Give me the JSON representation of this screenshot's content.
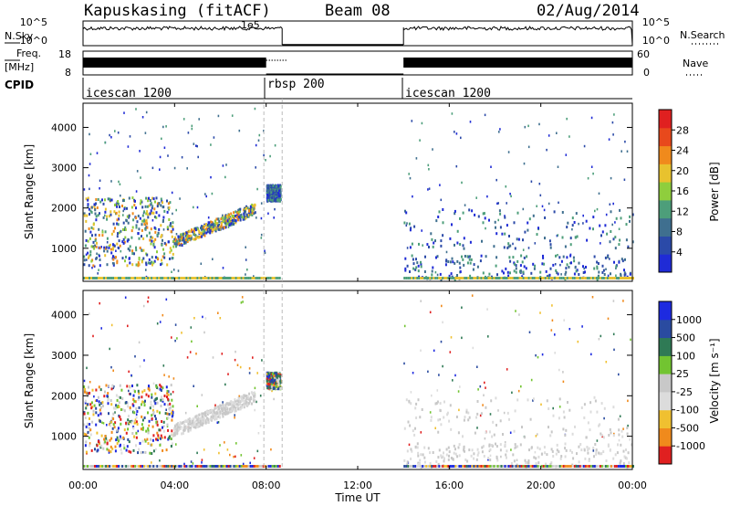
{
  "header": {
    "radar": "Kapuskasing (fitACF)",
    "beam": "Beam 08",
    "date": "02/Aug/2014"
  },
  "left_labels": {
    "nsky": "N.Sky",
    "freq_top": "Freq.",
    "freq_unit": "[MHz]",
    "cpid": "CPID"
  },
  "right_labels": {
    "nsearch": "N.Search",
    "nave": "Nave"
  },
  "colors": {
    "frame": "#000000",
    "guide": "#bbbbbb"
  },
  "chart_data": [
    {
      "type": "line",
      "panel": "noise",
      "left_axis": {
        "label": "N.Sky",
        "ticks": [
          "10^5",
          "10^0"
        ]
      },
      "right_axis": {
        "label": "N.Search",
        "ticks": [
          "10^5",
          "10^0"
        ]
      },
      "segments": [
        {
          "x": [
            "00:00",
            "08:42"
          ],
          "level": "high"
        },
        {
          "x": [
            "14:00",
            "24:00"
          ],
          "level": "high"
        }
      ],
      "annotation": "1e5"
    },
    {
      "type": "line",
      "panel": "frequency",
      "left_axis": {
        "label": "Freq. [MHz]",
        "ticks": [
          18,
          8
        ]
      },
      "right_axis": {
        "label": "Nave",
        "ticks": [
          60,
          0
        ]
      },
      "segments": [
        {
          "x": [
            "00:00",
            "08:00"
          ],
          "level": "high"
        },
        {
          "x": [
            "14:00",
            "24:00"
          ],
          "level": "high"
        }
      ]
    },
    {
      "type": "table",
      "panel": "cpid",
      "label": "CPID",
      "entries": [
        {
          "name": "icescan 1200",
          "start": "00:00"
        },
        {
          "name": "rbsp 200",
          "start": "08:00"
        },
        {
          "name": "icescan 1200",
          "start": "14:00"
        }
      ]
    },
    {
      "type": "heatmap",
      "panel": "power",
      "ylabel": "Slant Range [km]",
      "yticks": [
        1000,
        2000,
        3000,
        4000
      ],
      "ylim": [
        180,
        4600
      ],
      "colorbar": {
        "label": "Power [dB]",
        "ticks": [
          4,
          8,
          12,
          16,
          20,
          24,
          28
        ],
        "range": [
          0,
          32
        ]
      },
      "features": [
        {
          "x": [
            0.0,
            3.9
          ],
          "y": [
            600,
            2300
          ],
          "level": "medium"
        },
        {
          "x": [
            3.9,
            7.5
          ],
          "y": [
            1100,
            2000
          ],
          "level": "medium"
        },
        {
          "x": [
            8.0,
            8.6
          ],
          "y": [
            2200,
            2600
          ],
          "level": "low"
        },
        {
          "x": [
            14.0,
            24.0
          ],
          "y": [
            180,
            2000
          ],
          "level": "low"
        }
      ]
    },
    {
      "type": "heatmap",
      "panel": "velocity",
      "ylabel": "Slant Range [km]",
      "yticks": [
        1000,
        2000,
        3000,
        4000
      ],
      "ylim": [
        180,
        4600
      ],
      "colorbar": {
        "label": "Velocity [m s⁻¹]",
        "ticks": [
          1000,
          500,
          100,
          25,
          -25,
          -100,
          -500,
          -1000
        ]
      },
      "xlabel": "Time UT",
      "xticks": [
        "00:00",
        "04:00",
        "08:00",
        "12:00",
        "16:00",
        "20:00",
        "00:00"
      ],
      "xlim": [
        0,
        24
      ]
    }
  ]
}
